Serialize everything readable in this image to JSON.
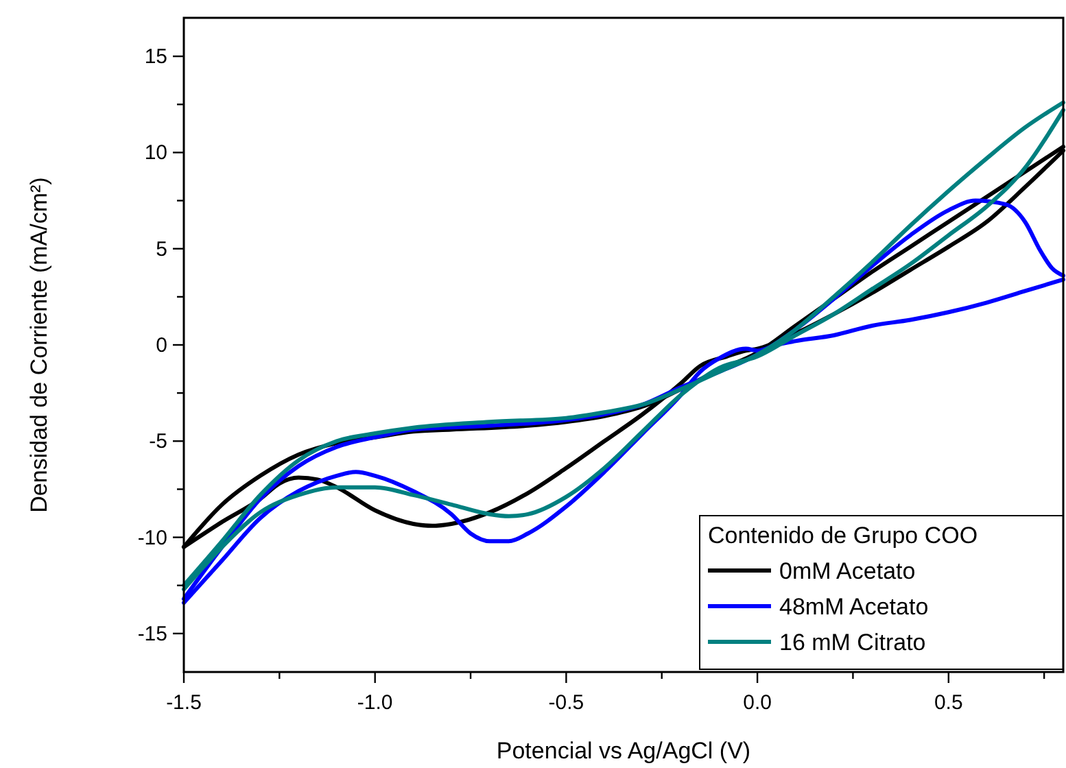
{
  "chart_data": {
    "type": "line",
    "xlabel": "Potencial vs Ag/AgCl (V)",
    "ylabel": "Densidad de Corriente (mA/cm²)",
    "legend_title": "Contenido de Grupo COO",
    "legend": "bottom right",
    "grid": false,
    "marker": "none",
    "line_style": "solid",
    "xlim": [
      -1.5,
      0.8
    ],
    "xticks": [
      -1.5,
      {
        "value": -1.25,
        "label": null
      },
      {
        "value": -1.0,
        "label": "-1.0"
      },
      {
        "value": -0.75,
        "label": null
      },
      -0.5,
      {
        "value": -0.25,
        "label": null
      },
      {
        "value": 0.0,
        "label": "0.0"
      },
      {
        "value": 0.25,
        "label": null
      },
      0.5,
      {
        "value": 0.75,
        "label": null
      }
    ],
    "ylim": [
      -17,
      17
    ],
    "yticks": [
      -15,
      {
        "value": -12.5,
        "label": null
      },
      -10,
      {
        "value": -7.5,
        "label": null
      },
      -5,
      {
        "value": -2.5,
        "label": null
      },
      0,
      {
        "value": 2.5,
        "label": null
      },
      5,
      {
        "value": 7.5,
        "label": null
      },
      10,
      {
        "value": 12.5,
        "label": null
      },
      15
    ],
    "series": [
      {
        "name": "0mM Acetato",
        "color": "#000000",
        "x": [
          -1.5,
          -1.4,
          -1.3,
          -1.2,
          -1.1,
          -1.0,
          -0.9,
          -0.8,
          -0.6,
          -0.5,
          -0.4,
          -0.3,
          -0.2,
          -0.1,
          0.0,
          0.1,
          0.2,
          0.3,
          0.4,
          0.5,
          0.6,
          0.7,
          0.8
        ],
        "values": [
          -10.5,
          -8.3,
          -6.8,
          -5.7,
          -5.1,
          -4.8,
          -4.5,
          -4.4,
          -4.2,
          -4.0,
          -3.7,
          -3.2,
          -2.3,
          -1.3,
          -0.4,
          1.0,
          2.4,
          3.8,
          5.1,
          6.4,
          7.7,
          9.0,
          10.3
        ]
      },
      {
        "color": "#000000",
        "x": [
          -1.5,
          -1.4,
          -1.3,
          -1.25,
          -1.2,
          -1.15,
          -1.1,
          -1.0,
          -0.9,
          -0.85,
          -0.8,
          -0.7,
          -0.6,
          -0.5,
          -0.4,
          -0.3,
          -0.2,
          -0.15,
          -0.08,
          -0.03,
          0.0,
          0.1,
          0.2,
          0.3,
          0.4,
          0.5,
          0.6,
          0.7,
          0.8
        ],
        "values": [
          -10.5,
          -9.2,
          -8.0,
          -7.2,
          -6.9,
          -7.0,
          -7.4,
          -8.6,
          -9.3,
          -9.4,
          -9.3,
          -8.7,
          -7.7,
          -6.4,
          -5.0,
          -3.6,
          -2.0,
          -1.1,
          -0.6,
          -0.3,
          -0.2,
          0.6,
          1.6,
          2.7,
          3.9,
          5.1,
          6.4,
          8.2,
          10.1
        ]
      },
      {
        "name": "48mM Acetato",
        "color": "#0000ff",
        "x": [
          -1.5,
          -1.4,
          -1.3,
          -1.2,
          -1.1,
          -1.0,
          -0.9,
          -0.7,
          -0.5,
          -0.4,
          -0.3,
          -0.2,
          -0.1,
          0.0,
          0.1,
          0.2,
          0.3,
          0.4,
          0.5,
          0.57,
          0.65,
          0.7,
          0.74,
          0.77,
          0.8
        ],
        "values": [
          -13.2,
          -10.5,
          -8.0,
          -6.3,
          -5.3,
          -4.8,
          -4.4,
          -4.2,
          -3.9,
          -3.6,
          -3.1,
          -2.2,
          -1.4,
          -0.5,
          0.8,
          2.4,
          4.1,
          5.7,
          7.0,
          7.5,
          7.3,
          6.4,
          4.9,
          4.0,
          3.6
        ]
      },
      {
        "color": "#0000ff",
        "x": [
          -1.5,
          -1.4,
          -1.3,
          -1.2,
          -1.1,
          -1.05,
          -1.0,
          -0.9,
          -0.8,
          -0.75,
          -0.7,
          -0.65,
          -0.6,
          -0.5,
          -0.4,
          -0.3,
          -0.2,
          -0.15,
          -0.1,
          -0.03,
          0.0,
          0.05,
          0.1,
          0.2,
          0.3,
          0.4,
          0.5,
          0.6,
          0.7,
          0.8
        ],
        "values": [
          -13.4,
          -11.2,
          -9.0,
          -7.6,
          -6.8,
          -6.6,
          -6.8,
          -7.6,
          -8.8,
          -9.8,
          -10.2,
          -10.2,
          -9.8,
          -8.4,
          -6.6,
          -4.6,
          -2.6,
          -1.4,
          -0.7,
          -0.2,
          -0.3,
          0.0,
          0.2,
          0.5,
          1.0,
          1.3,
          1.7,
          2.2,
          2.8,
          3.4
        ]
      },
      {
        "name": "16 mM Citrato",
        "color": "#008080",
        "x": [
          -1.5,
          -1.4,
          -1.3,
          -1.2,
          -1.1,
          -1.0,
          -0.9,
          -0.7,
          -0.5,
          -0.4,
          -0.3,
          -0.2,
          -0.1,
          0.0,
          0.1,
          0.2,
          0.3,
          0.4,
          0.5,
          0.6,
          0.7,
          0.8
        ],
        "values": [
          -12.5,
          -10.2,
          -7.8,
          -6.0,
          -5.0,
          -4.6,
          -4.3,
          -4.0,
          -3.8,
          -3.5,
          -3.1,
          -2.3,
          -1.4,
          -0.5,
          0.8,
          2.5,
          4.3,
          6.2,
          8.0,
          9.7,
          11.3,
          12.6
        ]
      },
      {
        "color": "#008080",
        "x": [
          -1.5,
          -1.4,
          -1.3,
          -1.2,
          -1.1,
          -1.0,
          -0.9,
          -0.8,
          -0.7,
          -0.65,
          -0.6,
          -0.5,
          -0.4,
          -0.3,
          -0.2,
          -0.1,
          0.0,
          0.1,
          0.2,
          0.3,
          0.4,
          0.5,
          0.6,
          0.7,
          0.8
        ],
        "values": [
          -12.7,
          -10.5,
          -8.7,
          -7.8,
          -7.4,
          -7.4,
          -7.8,
          -8.3,
          -8.8,
          -8.9,
          -8.8,
          -7.9,
          -6.4,
          -4.5,
          -2.6,
          -1.2,
          -0.6,
          0.5,
          1.6,
          2.9,
          4.2,
          5.7,
          7.2,
          9.2,
          12.2
        ]
      }
    ]
  }
}
